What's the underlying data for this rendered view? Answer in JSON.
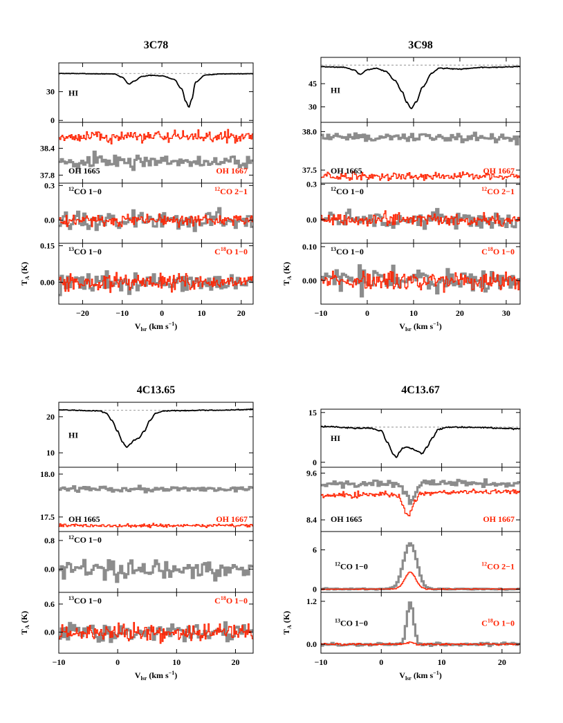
{
  "colors": {
    "black": "#000000",
    "gray": "#8c8c8c",
    "red": "#ff2200",
    "dash": "#7f7f7f"
  },
  "chart_data": [
    {
      "type": "line",
      "title": "3C78",
      "xlabel": "V_lsr (km s^-1)",
      "ylabel": "T_A (K)",
      "xlim": [
        -26,
        23
      ],
      "xticks": [
        -20,
        -10,
        0,
        10,
        20
      ],
      "tick_labels_x": [
        "−20",
        "−10",
        "0",
        "10",
        "20"
      ],
      "panels": [
        {
          "label_black": "HI",
          "label_red": "",
          "ylim": [
            -2,
            60
          ],
          "yticks": [
            0,
            30
          ],
          "tick_labels": [
            "0",
            "30"
          ],
          "continuum": 49,
          "series": [
            {
              "color": "black",
              "noise": 0.2,
              "baseline": 49,
              "x": [
                -26,
                -12,
                -10,
                -8.3,
                -7,
                -5,
                -3,
                0,
                3,
                5,
                6,
                6.8,
                7.5,
                8.5,
                11,
                16,
                23
              ],
              "y": [
                49,
                48.5,
                45,
                38,
                41,
                46,
                47,
                46.5,
                43,
                33,
                20,
                14,
                22,
                40,
                47.5,
                48.6,
                48.8
              ]
            }
          ]
        },
        {
          "label_black": "OH 1665",
          "label_red": "OH 1667",
          "ylim": [
            37.62,
            38.98
          ],
          "yticks": [
            37.8,
            38.4
          ],
          "tick_labels": [
            "37.8",
            "38.4"
          ],
          "series": [
            {
              "color": "gray",
              "baseline": 38.1,
              "noise": 0.1
            },
            {
              "color": "red",
              "baseline": 38.66,
              "noise": 0.09
            }
          ]
        },
        {
          "label_black": "12CO 1-0",
          "label_red": "12CO 2-1",
          "ylim": [
            -0.2,
            0.32
          ],
          "yticks": [
            0.0,
            0.3
          ],
          "tick_labels": [
            "0.0",
            "0.3"
          ],
          "series": [
            {
              "color": "gray",
              "baseline": 0,
              "noise": 0.055
            },
            {
              "color": "red",
              "baseline": 0,
              "noise": 0.035
            }
          ]
        },
        {
          "label_black": "13CO 1-0",
          "label_red": "C18O 1-0",
          "ylim": [
            -0.09,
            0.16
          ],
          "yticks": [
            0.0,
            0.15
          ],
          "tick_labels": [
            "0.00",
            "0.15"
          ],
          "series": [
            {
              "color": "gray",
              "baseline": 0,
              "noise": 0.03
            },
            {
              "color": "red",
              "baseline": 0,
              "noise": 0.025
            }
          ]
        }
      ]
    },
    {
      "type": "line",
      "title": "3C98",
      "xlabel": "V_lsr (km s^-1)",
      "ylabel": "T_A (K)",
      "xlim": [
        -10,
        33
      ],
      "xticks": [
        -10,
        0,
        10,
        20,
        30
      ],
      "tick_labels_x": [
        "−10",
        "0",
        "10",
        "20",
        "30"
      ],
      "panels": [
        {
          "label_black": "HI",
          "label_red": "",
          "ylim": [
            20,
            62
          ],
          "yticks": [
            30,
            45
          ],
          "tick_labels": [
            "30",
            "45"
          ],
          "continuum": 57,
          "series": [
            {
              "color": "black",
              "noise": 0.2,
              "baseline": 56,
              "x": [
                -10,
                -5,
                -3,
                -1.5,
                0,
                2,
                4,
                6,
                7.5,
                8.5,
                9.5,
                10.5,
                12,
                14,
                15.5,
                20,
                25,
                33
              ],
              "y": [
                56,
                55.6,
                54,
                51,
                54,
                55,
                53,
                47,
                40,
                33,
                29,
                33,
                43,
                52,
                55,
                54.5,
                55.5,
                56
              ]
            }
          ]
        },
        {
          "label_black": "OH 1665",
          "label_red": "OH 1667",
          "ylim": [
            37.33,
            38.12
          ],
          "yticks": [
            37.5,
            38.0
          ],
          "tick_labels": [
            "37.5",
            "38.0"
          ],
          "series": [
            {
              "color": "gray",
              "baseline": 37.92,
              "noise": 0.04
            },
            {
              "color": "red",
              "baseline": 37.42,
              "noise": 0.035
            }
          ]
        },
        {
          "label_black": "12CO 1-0",
          "label_red": "12CO 2-1",
          "ylim": [
            -0.2,
            0.31
          ],
          "yticks": [
            0.0,
            0.3
          ],
          "tick_labels": [
            "0.0",
            "0.3"
          ],
          "series": [
            {
              "color": "gray",
              "baseline": 0,
              "noise": 0.05
            },
            {
              "color": "red",
              "baseline": 0,
              "noise": 0.035
            }
          ]
        },
        {
          "label_black": "13CO 1-0",
          "label_red": "C18O 1-0",
          "ylim": [
            -0.07,
            0.11
          ],
          "yticks": [
            0.0,
            0.1
          ],
          "tick_labels": [
            "0.00",
            "0.10"
          ],
          "series": [
            {
              "color": "gray",
              "baseline": 0,
              "noise": 0.025
            },
            {
              "color": "red",
              "baseline": 0,
              "noise": 0.02
            }
          ]
        }
      ]
    },
    {
      "type": "line",
      "title": "4C13.65",
      "xlabel": "V_lsr (km s^-1)",
      "ylabel": "T_A (K)",
      "xlim": [
        -10,
        23
      ],
      "xticks": [
        -10,
        0,
        10,
        20
      ],
      "tick_labels_x": [
        "−10",
        "0",
        "10",
        "20"
      ],
      "panels": [
        {
          "label_black": "HI",
          "label_red": "",
          "ylim": [
            6,
            24
          ],
          "yticks": [
            10,
            20
          ],
          "tick_labels": [
            "10",
            "20"
          ],
          "continuum": 21.8,
          "series": [
            {
              "color": "black",
              "noise": 0.08,
              "baseline": 21.8,
              "x": [
                -10,
                -3,
                -2,
                -1,
                0,
                0.8,
                1.5,
                2.2,
                2.8,
                3.5,
                4.5,
                5.5,
                6.5,
                8,
                10,
                16,
                23
              ],
              "y": [
                21.9,
                21.6,
                21,
                19,
                16,
                13,
                11.6,
                12.5,
                13.6,
                14,
                16,
                19,
                21,
                21.6,
                21.7,
                21.8,
                22
              ]
            }
          ]
        },
        {
          "label_black": "OH 1665",
          "label_red": "OH 1667",
          "ylim": [
            17.33,
            18.08
          ],
          "yticks": [
            17.5,
            18.0
          ],
          "tick_labels": [
            "17.5",
            "18.0"
          ],
          "series": [
            {
              "color": "gray",
              "baseline": 17.83,
              "noise": 0.025
            },
            {
              "color": "red",
              "baseline": 17.4,
              "noise": 0.015
            }
          ]
        },
        {
          "label_black": "12CO 1-0",
          "label_red": "",
          "ylim": [
            -0.65,
            1.05
          ],
          "yticks": [
            0.0,
            0.8
          ],
          "tick_labels": [
            "0.0",
            "0.8"
          ],
          "series": [
            {
              "color": "gray",
              "baseline": 0,
              "noise": 0.2
            }
          ]
        },
        {
          "label_black": "13CO 1-0",
          "label_red": "C18O 1-0",
          "ylim": [
            -0.45,
            0.85
          ],
          "yticks": [
            0.0,
            0.6
          ],
          "tick_labels": [
            "0.0",
            "0.6"
          ],
          "series": [
            {
              "color": "gray",
              "baseline": 0,
              "noise": 0.14
            },
            {
              "color": "red",
              "baseline": 0,
              "noise": 0.12
            }
          ]
        }
      ]
    },
    {
      "type": "line",
      "title": "4C13.67",
      "xlabel": "V_lsr (km s^-1)",
      "ylabel": "T_A (K)",
      "xlim": [
        -10,
        23
      ],
      "xticks": [
        -10,
        0,
        10,
        20
      ],
      "tick_labels_x": [
        "−10",
        "0",
        "10",
        "20"
      ],
      "panels": [
        {
          "label_black": "HI",
          "label_red": "",
          "ylim": [
            -1.5,
            16
          ],
          "yticks": [
            0,
            15
          ],
          "tick_labels": [
            "0",
            "15"
          ],
          "continuum": 10.6,
          "series": [
            {
              "color": "black",
              "noise": 0.12,
              "baseline": 10.8,
              "x": [
                -10,
                -4,
                -2,
                0,
                1,
                2,
                2.5,
                3,
                3.5,
                4.2,
                5,
                6,
                6.8,
                7.5,
                8.5,
                9.5,
                11,
                16,
                23
              ],
              "y": [
                10.8,
                10.3,
                10.3,
                9.5,
                6,
                2.5,
                1.5,
                3,
                4.2,
                4.6,
                4.2,
                3.3,
                2.6,
                4.5,
                7.5,
                10,
                10.6,
                10.5,
                10.1
              ]
            }
          ]
        },
        {
          "label_black": "OH 1665",
          "label_red": "OH 1667",
          "ylim": [
            8.1,
            9.75
          ],
          "yticks": [
            8.4,
            9.6
          ],
          "tick_labels": [
            "8.4",
            "9.6"
          ],
          "series": [
            {
              "color": "gray",
              "baseline": 9.33,
              "noise": 0.06,
              "feature": {
                "center": 4.8,
                "width": 0.7,
                "depth": -0.45
              }
            },
            {
              "color": "red",
              "baseline": 9.02,
              "noise": 0.05,
              "trend": 0.012,
              "feature": {
                "center": 4.5,
                "width": 0.8,
                "depth": -0.55
              }
            }
          ]
        },
        {
          "label_black": "12CO 1-0",
          "label_red": "12CO 2-1",
          "ylim": [
            -0.5,
            8.8
          ],
          "yticks": [
            0,
            6
          ],
          "tick_labels": [
            "0",
            "6"
          ],
          "series": [
            {
              "color": "gray",
              "baseline": 0,
              "noise": 0.07,
              "feature": {
                "center": 4.8,
                "width": 1.1,
                "depth": 7.0
              }
            },
            {
              "color": "red",
              "baseline": 0,
              "noise": 0.05,
              "feature": {
                "center": 4.8,
                "width": 0.9,
                "depth": 2.6
              }
            }
          ]
        },
        {
          "label_black": "13CO 1-0",
          "label_red": "C18O 1-0",
          "ylim": [
            -0.25,
            1.45
          ],
          "yticks": [
            0.0,
            1.2
          ],
          "tick_labels": [
            "0.0",
            "1.2"
          ],
          "series": [
            {
              "color": "gray",
              "baseline": 0,
              "noise": 0.03,
              "feature": {
                "center": 4.8,
                "width": 0.55,
                "depth": 1.17
              }
            },
            {
              "color": "red",
              "baseline": 0,
              "noise": 0.02,
              "feature": {
                "center": 4.8,
                "width": 0.5,
                "depth": 0.06
              }
            }
          ]
        }
      ]
    }
  ]
}
